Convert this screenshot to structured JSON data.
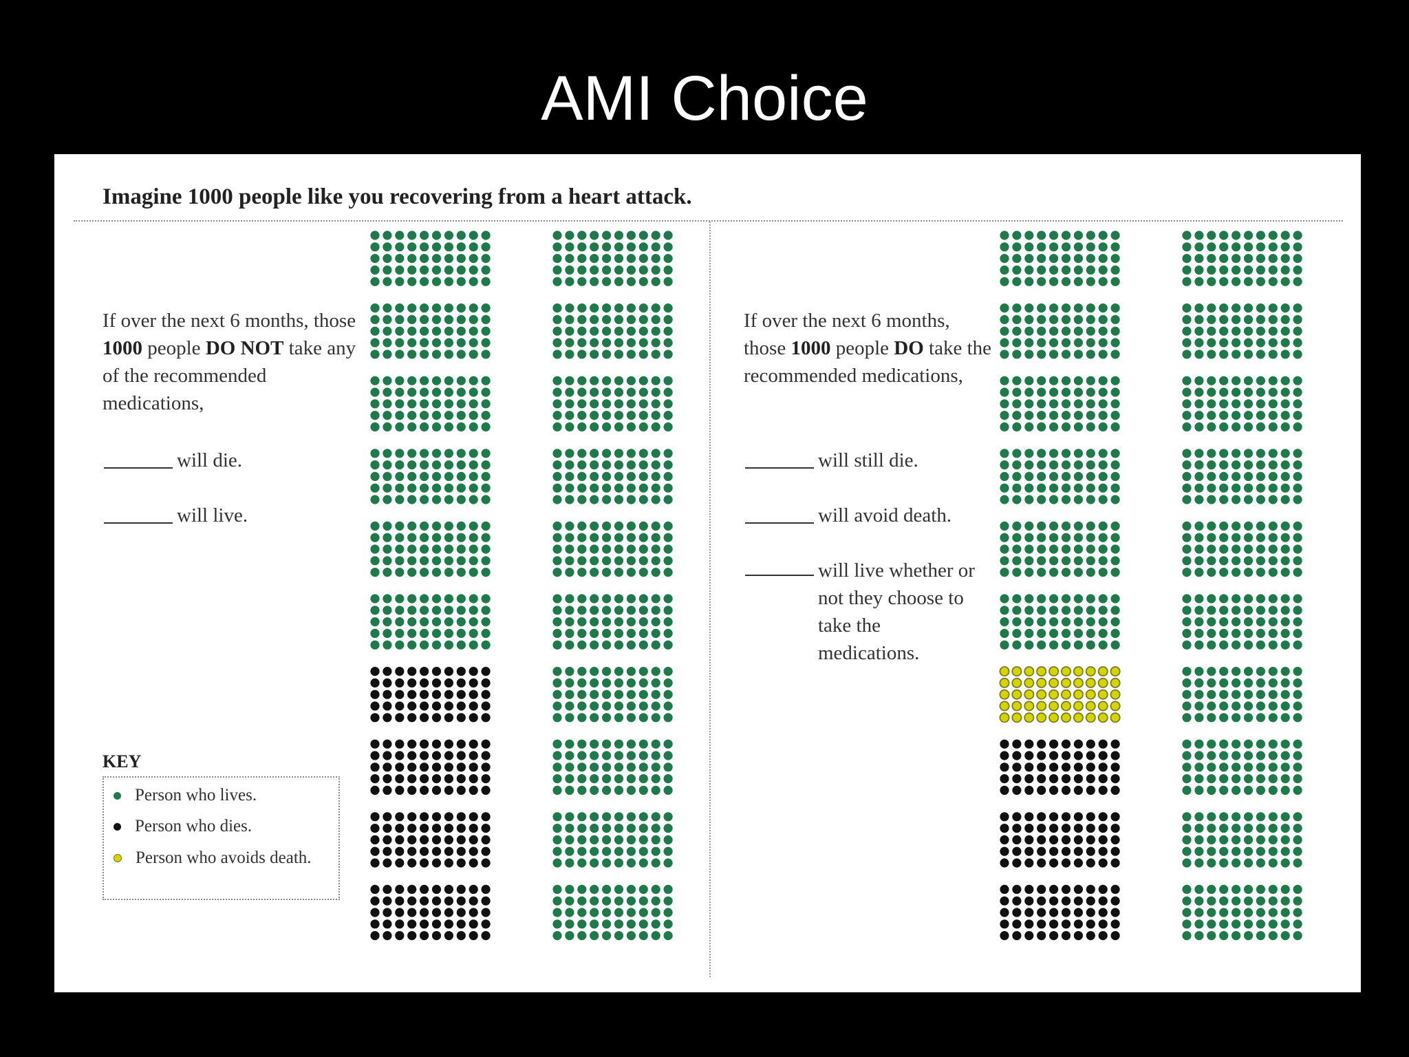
{
  "slide": {
    "title": "AMI Choice"
  },
  "panel": {
    "heading": "Imagine 1000 people like you recovering from a heart attack."
  },
  "left": {
    "prompt_pre": "If over the next 6 months, those ",
    "prompt_bold1": "1000",
    "prompt_mid": " people ",
    "prompt_bold2": "DO NOT",
    "prompt_post": " take any of the recommended medications,",
    "blank_die": "will die.",
    "blank_live": "will live."
  },
  "right": {
    "prompt_pre": "If over the next 6 months, those ",
    "prompt_bold1": "1000",
    "prompt_mid": " people ",
    "prompt_bold2": "DO",
    "prompt_post": " take the recommended medications,",
    "blank_die": "will still die.",
    "blank_avoid": "will avoid death.",
    "blank_whether": "will live whether or not they choose to take the medications."
  },
  "key": {
    "title": "KEY",
    "lives": "Person who lives.",
    "dies": "Person who dies.",
    "avoids": "Person who avoids death."
  },
  "colors": {
    "lives": "#1e7a4b",
    "dies": "#111111",
    "avoids": "#d4d400",
    "avoids_outline": "#7a7a22"
  },
  "icon_arrays": [
    {
      "name": "without-medications",
      "total": 1000,
      "dies": 200,
      "avoids": 0,
      "lives": 800
    },
    {
      "name": "with-medications",
      "total": 1000,
      "dies": 150,
      "avoids": 50,
      "lives": 800
    }
  ]
}
